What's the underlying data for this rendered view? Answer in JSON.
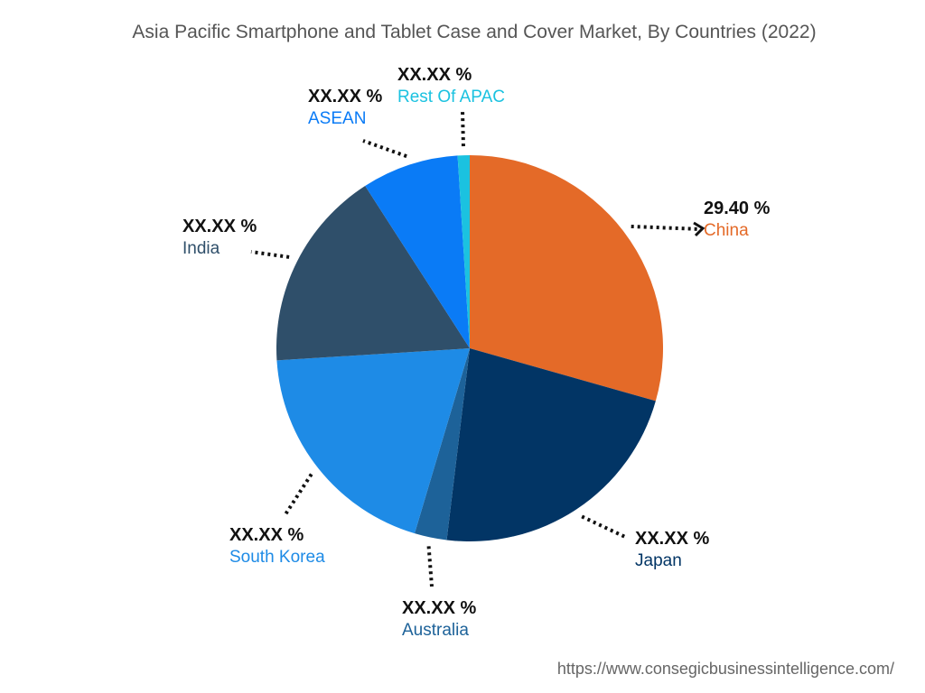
{
  "chart_data": {
    "type": "pie",
    "title": "Asia Pacific Smartphone and Tablet Case and Cover Market, By Countries (2022)",
    "slices": [
      {
        "name": "China",
        "value": 29.4,
        "value_label": "29.40 %",
        "color": "#E46A28"
      },
      {
        "name": "Japan",
        "value": 22.5,
        "value_label": "XX.XX %",
        "color": "#023565"
      },
      {
        "name": "Australia",
        "value": 2.7,
        "value_label": "XX.XX %",
        "color": "#1D6299"
      },
      {
        "name": "South Korea",
        "value": 19.4,
        "value_label": "XX.XX %",
        "color": "#1E8BE6"
      },
      {
        "name": "India",
        "value": 16.9,
        "value_label": "XX.XX %",
        "color": "#2F4F6A"
      },
      {
        "name": "ASEAN",
        "value": 8.1,
        "value_label": "XX.XX %",
        "color": "#0A7BF6"
      },
      {
        "name": "Rest Of APAC",
        "value": 1.0,
        "value_label": "XX.XX %",
        "color": "#1BC2E0"
      }
    ],
    "legend": "none",
    "labels": "outside-with-dotted-leaders"
  },
  "footer": {
    "url": "https://www.consegicbusinessintelligence.com/"
  }
}
